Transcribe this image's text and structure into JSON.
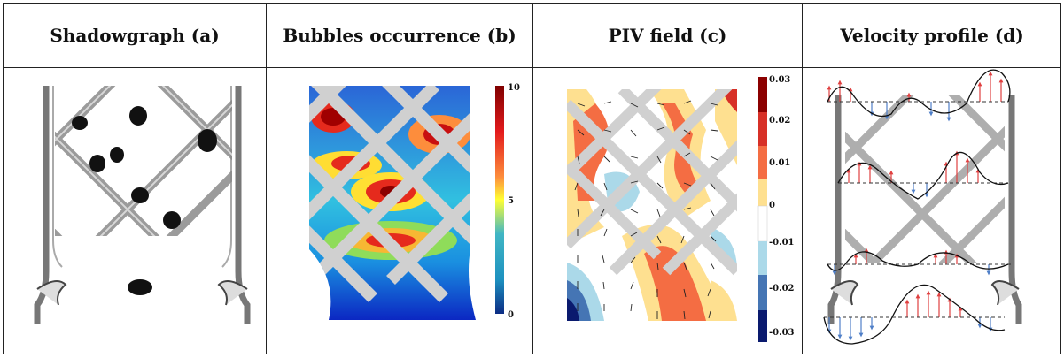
{
  "panels": [
    {
      "title": "Shadowgraph (a)"
    },
    {
      "title": "Bubbles occurrence (b)"
    },
    {
      "title": "PIV field (c)"
    },
    {
      "title": "Velocity profile (d)"
    }
  ],
  "colorbar_b": {
    "ticks": [
      "10",
      "5",
      "0"
    ],
    "colormap": [
      "#7f0000",
      "#d7191c",
      "#fd8d3c",
      "#ffff33",
      "#41b6c4",
      "#1d91c0",
      "#0c2c84"
    ]
  },
  "colorbar_c": {
    "ticks": [
      "0.03",
      "0.02",
      "0.01",
      "0",
      "-0.01",
      "-0.02",
      "-0.03"
    ],
    "colors": [
      "#8b0000",
      "#d73027",
      "#f46d43",
      "#fee090",
      "#ffffff",
      "#abd9e9",
      "#4575b4",
      "#0a1a6e"
    ]
  },
  "colors": {
    "border": "#222222",
    "lattice": "#cccccc",
    "arrow_up": "#e04040",
    "arrow_down": "#4f7fc8"
  }
}
